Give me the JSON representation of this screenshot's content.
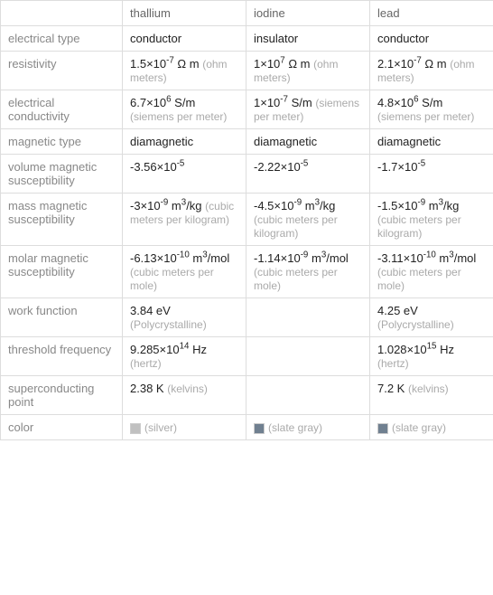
{
  "columns": [
    "thallium",
    "iodine",
    "lead"
  ],
  "rows": [
    {
      "label": "electrical type",
      "cells": [
        {
          "main": "conductor"
        },
        {
          "main": "insulator"
        },
        {
          "main": "conductor"
        }
      ]
    },
    {
      "label": "resistivity",
      "cells": [
        {
          "main": "1.5×10^-7 Ω m",
          "unit": "(ohm meters)"
        },
        {
          "main": "1×10^7 Ω m",
          "unit": "(ohm meters)"
        },
        {
          "main": "2.1×10^-7 Ω m",
          "unit": "(ohm meters)"
        }
      ]
    },
    {
      "label": "electrical conductivity",
      "cells": [
        {
          "main": "6.7×10^6 S/m",
          "unit": "(siemens per meter)"
        },
        {
          "main": "1×10^-7 S/m",
          "unit": "(siemens per meter)"
        },
        {
          "main": "4.8×10^6 S/m",
          "unit": "(siemens per meter)"
        }
      ]
    },
    {
      "label": "magnetic type",
      "cells": [
        {
          "main": "diamagnetic"
        },
        {
          "main": "diamagnetic"
        },
        {
          "main": "diamagnetic"
        }
      ]
    },
    {
      "label": "volume magnetic susceptibility",
      "cells": [
        {
          "main": "-3.56×10^-5"
        },
        {
          "main": "-2.22×10^-5"
        },
        {
          "main": "-1.7×10^-5"
        }
      ]
    },
    {
      "label": "mass magnetic susceptibility",
      "cells": [
        {
          "main": "-3×10^-9 m^3/kg",
          "unit": "(cubic meters per kilogram)"
        },
        {
          "main": "-4.5×10^-9 m^3/kg",
          "unit": "(cubic meters per kilogram)"
        },
        {
          "main": "-1.5×10^-9 m^3/kg",
          "unit": "(cubic meters per kilogram)"
        }
      ]
    },
    {
      "label": "molar magnetic susceptibility",
      "cells": [
        {
          "main": "-6.13×10^-10 m^3/mol",
          "unit": "(cubic meters per mole)"
        },
        {
          "main": "-1.14×10^-9 m^3/mol",
          "unit": "(cubic meters per mole)"
        },
        {
          "main": "-3.11×10^-10 m^3/mol",
          "unit": "(cubic meters per mole)"
        }
      ]
    },
    {
      "label": "work function",
      "cells": [
        {
          "main": "3.84 eV",
          "unit": "(Polycrystalline)"
        },
        {
          "main": ""
        },
        {
          "main": "4.25 eV",
          "unit": "(Polycrystalline)"
        }
      ]
    },
    {
      "label": "threshold frequency",
      "cells": [
        {
          "main": "9.285×10^14 Hz",
          "unit": "(hertz)"
        },
        {
          "main": ""
        },
        {
          "main": "1.028×10^15 Hz",
          "unit": "(hertz)"
        }
      ]
    },
    {
      "label": "superconducting point",
      "cells": [
        {
          "main": "2.38 K",
          "unit": "(kelvins)"
        },
        {
          "main": ""
        },
        {
          "main": "7.2 K",
          "unit": "(kelvins)"
        }
      ]
    },
    {
      "label": "color",
      "cells": [
        {
          "main": "(silver)",
          "swatch": "#c0c0c0",
          "muted": true
        },
        {
          "main": "(slate gray)",
          "swatch": "#708090",
          "muted": true
        },
        {
          "main": "(slate gray)",
          "swatch": "#708090",
          "muted": true
        }
      ]
    }
  ],
  "style": {
    "border_color": "#dddddd",
    "label_color": "#888888",
    "value_color": "#222222",
    "unit_color": "#aaaaaa",
    "header_color": "#666666",
    "background": "#ffffff",
    "font_size_main": 13,
    "font_size_unit": 12
  }
}
